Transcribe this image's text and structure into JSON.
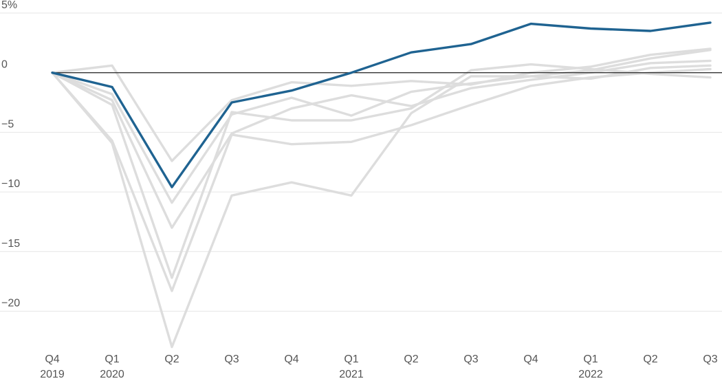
{
  "chart_data": {
    "type": "line",
    "title": "",
    "xlabel": "",
    "ylabel": "",
    "x": [
      "Q4 2019",
      "Q1 2020",
      "Q2 2020",
      "Q3 2020",
      "Q4 2020",
      "Q1 2021",
      "Q2 2021",
      "Q3 2021",
      "Q4 2021",
      "Q1 2022",
      "Q2 2022",
      "Q3 2022"
    ],
    "x_tick_labels": [
      {
        "quarter": "Q4",
        "year": "2019"
      },
      {
        "quarter": "Q1",
        "year": "2020"
      },
      {
        "quarter": "Q2",
        "year": ""
      },
      {
        "quarter": "Q3",
        "year": ""
      },
      {
        "quarter": "Q4",
        "year": ""
      },
      {
        "quarter": "Q1",
        "year": "2021"
      },
      {
        "quarter": "Q2",
        "year": ""
      },
      {
        "quarter": "Q3",
        "year": ""
      },
      {
        "quarter": "Q4",
        "year": ""
      },
      {
        "quarter": "Q1",
        "year": "2022"
      },
      {
        "quarter": "Q2",
        "year": ""
      },
      {
        "quarter": "Q3",
        "year": ""
      }
    ],
    "y_ticks": [
      5,
      0,
      -5,
      -10,
      -15,
      -20
    ],
    "y_tick_labels": [
      "5%",
      "0",
      "−5",
      "−10",
      "−15",
      "−20"
    ],
    "ylim": [
      -22.8,
      5
    ],
    "grid": true,
    "reference_line": 0,
    "highlight_color": "#1f6391",
    "background_color": "#dddddd",
    "series": [
      {
        "highlight": true,
        "values": [
          0,
          -1.2,
          -9.6,
          -2.5,
          -1.5,
          0.0,
          1.7,
          2.4,
          4.1,
          3.7,
          3.5,
          4.2
        ]
      },
      {
        "highlight": false,
        "values": [
          0,
          0.6,
          -7.4,
          -2.3,
          -0.8,
          -1.1,
          -0.7,
          -1.0,
          0.0,
          0.5,
          1.5,
          2.0
        ]
      },
      {
        "highlight": false,
        "values": [
          0,
          -1.8,
          -10.9,
          -3.5,
          -2.1,
          -3.6,
          -1.6,
          -0.9,
          -0.3,
          0.2,
          1.2,
          1.9
        ]
      },
      {
        "highlight": false,
        "values": [
          0,
          -2.3,
          -13.0,
          -5.1,
          -3.0,
          -1.9,
          -2.8,
          -1.3,
          -0.6,
          0.0,
          0.8,
          1.0
        ]
      },
      {
        "highlight": false,
        "values": [
          0,
          -2.7,
          -17.2,
          -3.3,
          -4.0,
          -4.0,
          -3.0,
          0.2,
          0.7,
          0.3,
          -0.1,
          -0.4
        ]
      },
      {
        "highlight": false,
        "values": [
          0,
          -5.7,
          -18.3,
          -5.2,
          -6.0,
          -5.8,
          -4.4,
          -2.7,
          -1.1,
          -0.4,
          0.0,
          0.3
        ]
      },
      {
        "highlight": false,
        "values": [
          0,
          -5.9,
          -23.0,
          -10.3,
          -9.2,
          -10.3,
          -3.4,
          -0.3,
          -0.3,
          -0.5,
          0.4,
          0.6
        ]
      }
    ]
  }
}
